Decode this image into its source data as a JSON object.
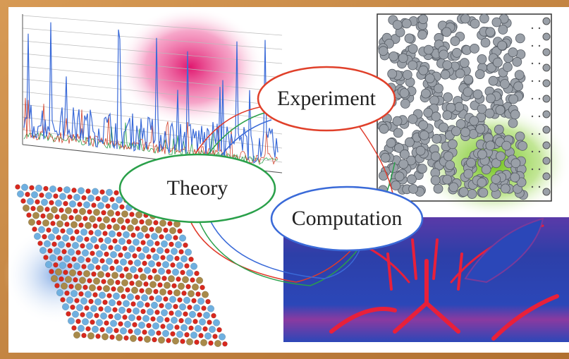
{
  "nodes": [
    {
      "label": "Experiment"
    },
    {
      "label": "Theory"
    },
    {
      "label": "Computation"
    }
  ]
}
